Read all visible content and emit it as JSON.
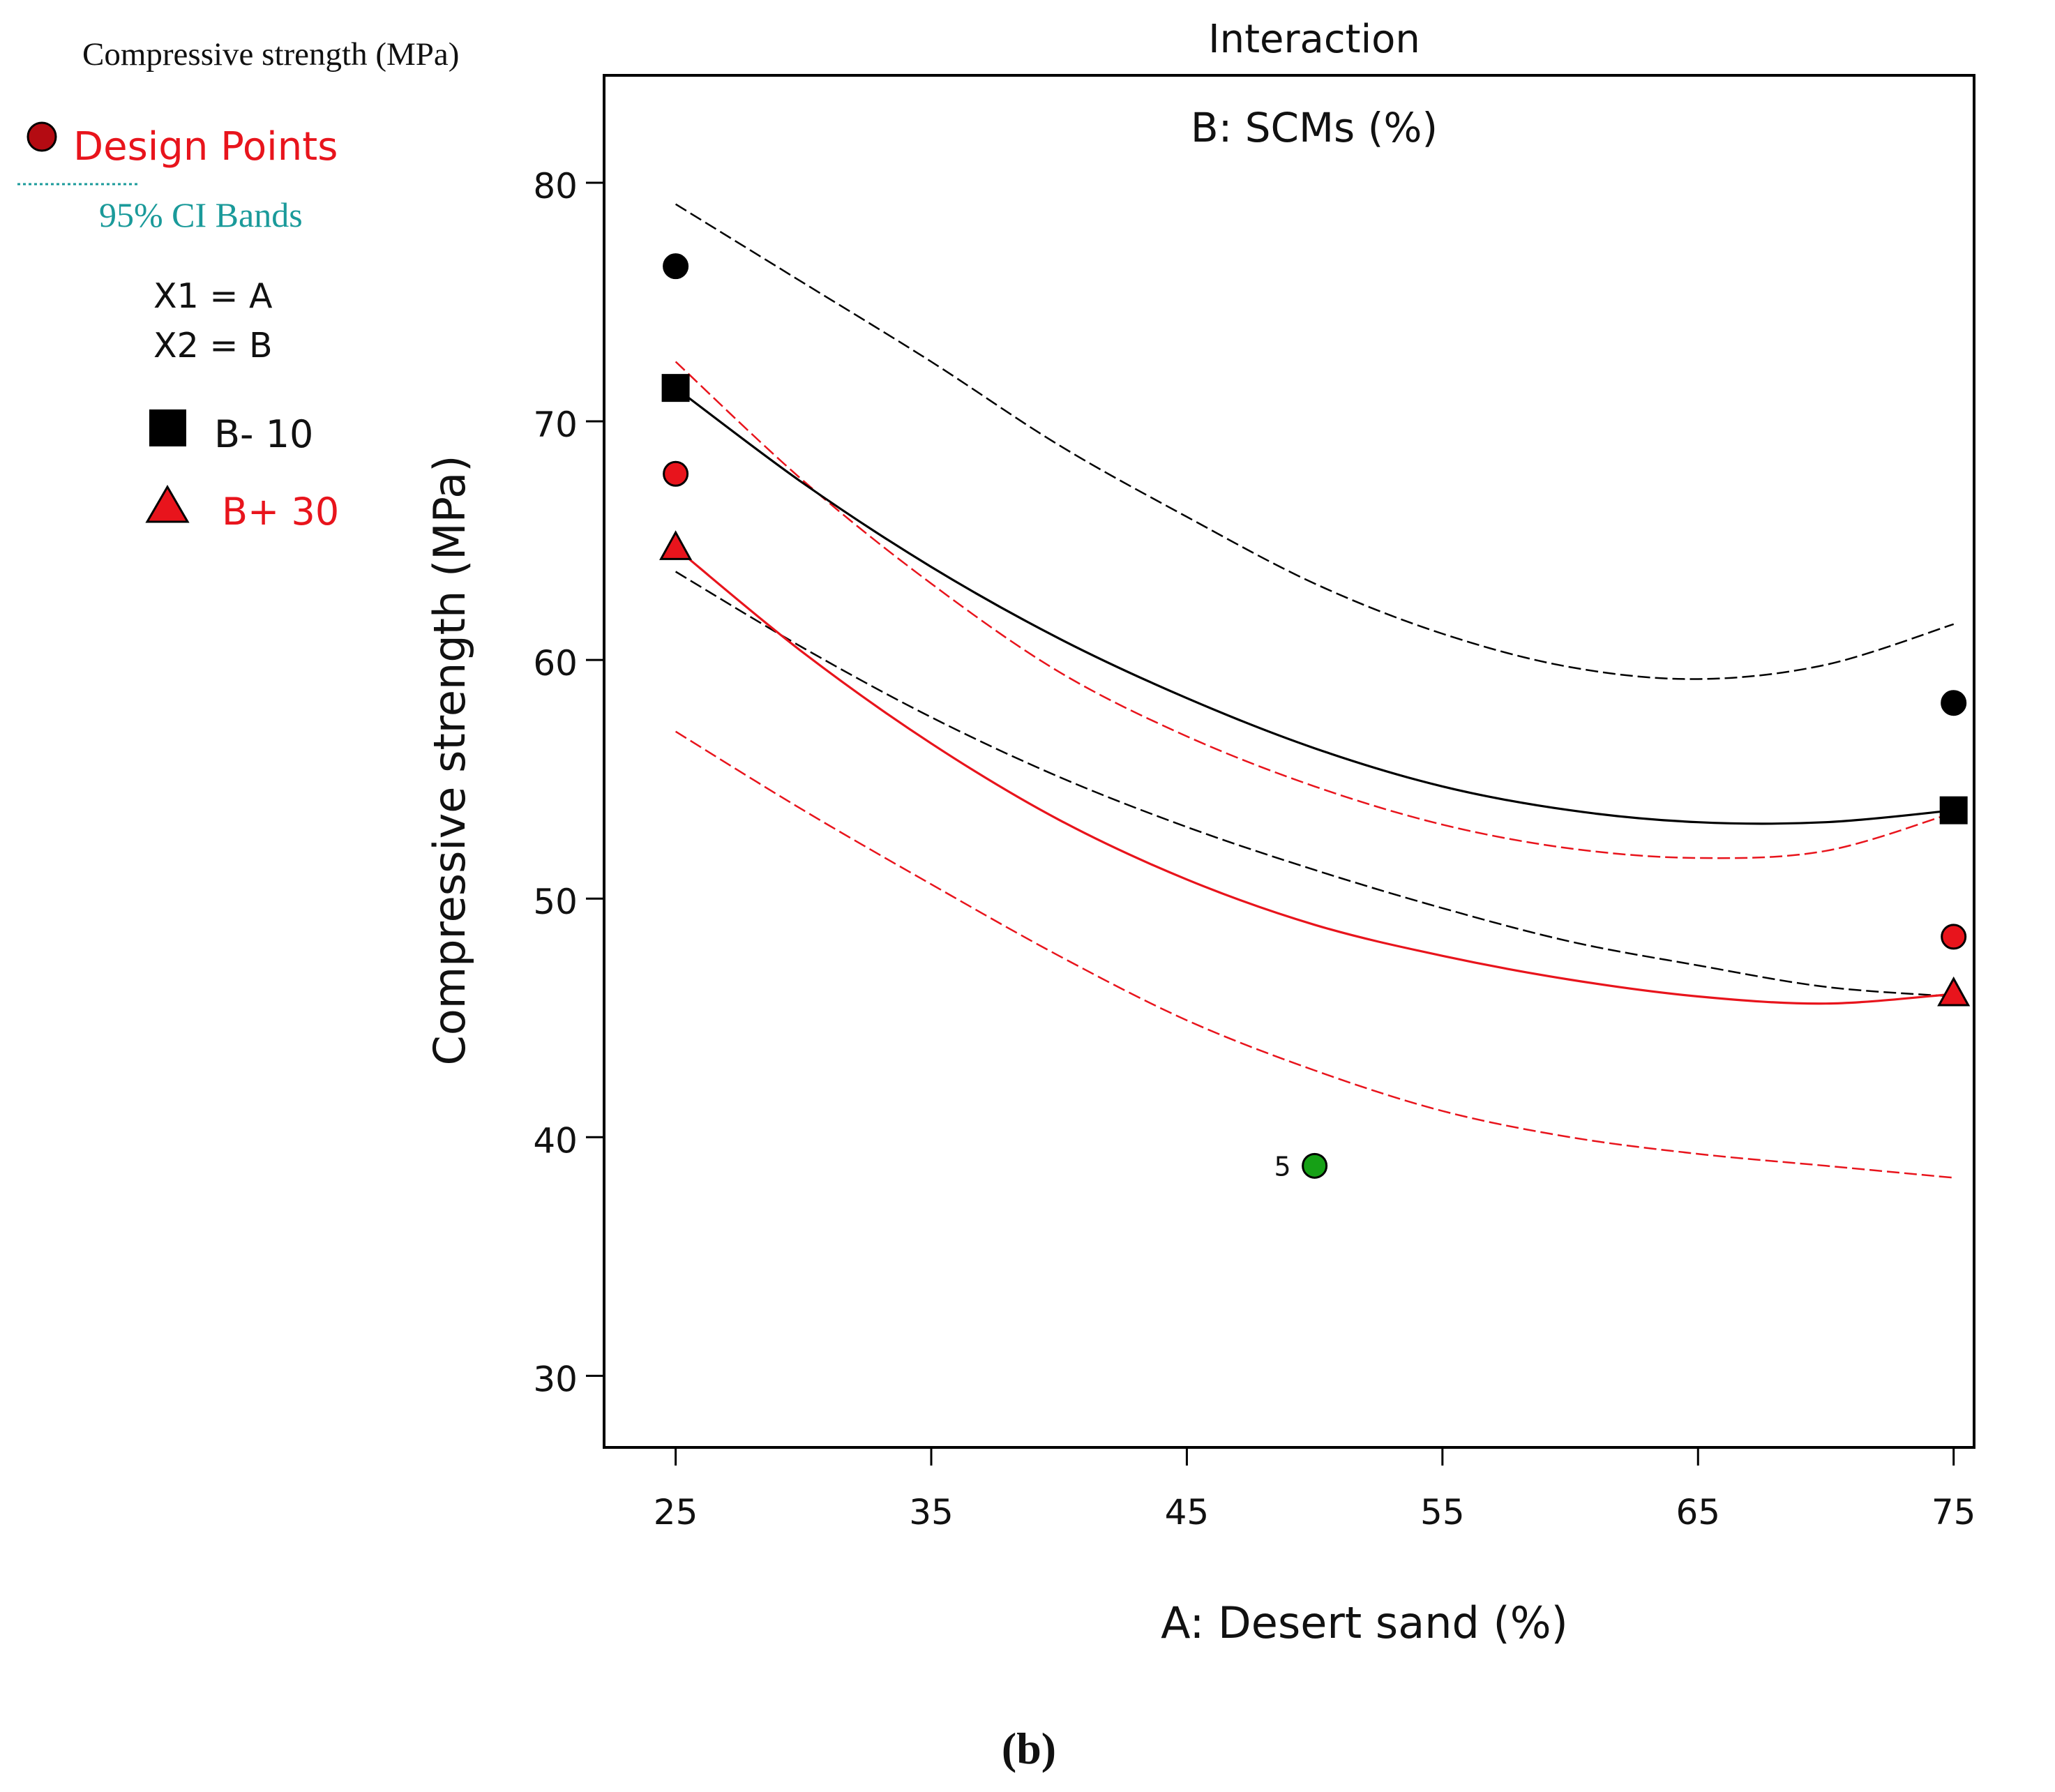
{
  "legend": {
    "response_title": "Compressive strength (MPa)",
    "design_points_label": "Design Points",
    "ci_label": "95% CI Bands",
    "x1_label": "X1 = A",
    "x2_label": "X2 = B",
    "series_low_label": "B- 10",
    "series_high_label": "B+ 30"
  },
  "figure_label": "(b)",
  "colors": {
    "low_series": "#000000",
    "high_series": "#e8141c",
    "design_point_legend": "#b40b12",
    "ci_text": "#1a9a9a",
    "design_text": "#e8141c",
    "center_point": "#16a016"
  },
  "chart_data": {
    "type": "line",
    "title": "Interaction",
    "subtitle": "B: SCMs (%)",
    "xlabel": "A: Desert sand (%)",
    "ylabel": "Compressive strength (MPa)",
    "xlim": [
      22.2,
      75.8
    ],
    "ylim": [
      27,
      84.5
    ],
    "xticks": [
      25,
      35,
      45,
      55,
      65,
      75
    ],
    "yticks": [
      30,
      40,
      50,
      60,
      70,
      80
    ],
    "grid": false,
    "legend_position": "left",
    "series": [
      {
        "name": "B- 10",
        "color": "#000000",
        "marker": "square",
        "x": [
          25,
          30,
          35,
          40,
          45,
          50,
          55,
          60,
          65,
          70,
          75
        ],
        "values": [
          71.4,
          67.4,
          63.9,
          60.9,
          58.4,
          56.3,
          54.7,
          53.7,
          53.2,
          53.2,
          53.7
        ],
        "ci_upper": [
          79.1,
          75.8,
          72.5,
          69.0,
          66.0,
          63.2,
          61.1,
          59.7,
          59.2,
          59.8,
          61.5
        ],
        "ci_lower": [
          63.7,
          60.5,
          57.6,
          55.1,
          53.0,
          51.2,
          49.6,
          48.2,
          47.2,
          46.3,
          45.9
        ]
      },
      {
        "name": "B+ 30",
        "color": "#e8141c",
        "marker": "triangle",
        "x": [
          25,
          30,
          35,
          40,
          45,
          50,
          55,
          60,
          65,
          70,
          75
        ],
        "values": [
          64.7,
          60.3,
          56.5,
          53.3,
          50.8,
          48.9,
          47.6,
          46.6,
          45.9,
          45.6,
          46.0
        ],
        "ci_upper": [
          72.5,
          67.5,
          63.2,
          59.5,
          56.8,
          54.7,
          53.1,
          52.1,
          51.7,
          52.0,
          53.6
        ],
        "ci_lower": [
          57.0,
          53.7,
          50.6,
          47.6,
          44.9,
          42.8,
          41.1,
          40.0,
          39.3,
          38.8,
          38.3
        ]
      }
    ],
    "design_points": [
      {
        "x": 25,
        "y": 76.5,
        "color": "#000000",
        "shape": "circle"
      },
      {
        "x": 25,
        "y": 67.8,
        "color": "#e8141c",
        "shape": "circle"
      },
      {
        "x": 75,
        "y": 58.2,
        "color": "#000000",
        "shape": "circle"
      },
      {
        "x": 75,
        "y": 48.4,
        "color": "#e8141c",
        "shape": "circle"
      },
      {
        "x": 50,
        "y": 38.8,
        "color": "#16a016",
        "shape": "circle",
        "label": "5"
      }
    ]
  }
}
